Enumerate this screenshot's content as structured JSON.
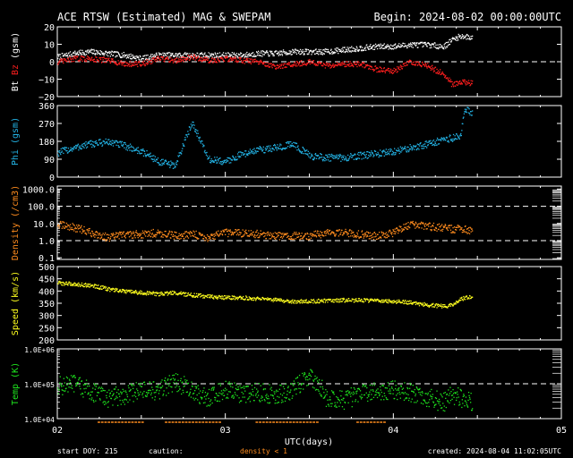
{
  "header": {
    "title": "ACE RTSW (Estimated) MAG & SWEPAM",
    "begin": "Begin: 2024-08-02 00:00:00UTC"
  },
  "footer": {
    "start_doy": "start DOY: 215",
    "caution": "caution:",
    "density_note": "density < 1",
    "created": "created: 2024-08-04 11:02:05UTC"
  },
  "x_axis": {
    "label": "UTC(days)",
    "ticks": [
      "02",
      "03",
      "04",
      "05"
    ],
    "range_days": [
      2,
      5
    ],
    "data_end_day": 4.47
  },
  "colors": {
    "bt": "#ffffff",
    "bz": "#ff1e1e",
    "phi": "#23b4e6",
    "density": "#ff8c1e",
    "speed": "#ffff1e",
    "temp": "#1ee61e",
    "frame": "#ffffff",
    "bg": "#000000"
  },
  "chart_data": [
    {
      "type": "scatter",
      "id": "mag",
      "ylabel_parts": [
        "Bt",
        "Bz",
        "(gsm)"
      ],
      "ylim": [
        -20,
        20
      ],
      "yticks": [
        "20",
        "10",
        "0",
        "−10",
        "−20"
      ],
      "yticks_values": [
        20,
        10,
        0,
        -10,
        -20
      ],
      "dashed_at": [
        0
      ],
      "series": [
        {
          "name": "Bt",
          "x": [
            2.0,
            2.1,
            2.2,
            2.3,
            2.4,
            2.5,
            2.6,
            2.7,
            2.8,
            2.9,
            3.0,
            3.1,
            3.2,
            3.3,
            3.4,
            3.5,
            3.6,
            3.7,
            3.8,
            3.9,
            4.0,
            4.1,
            4.2,
            4.3,
            4.35,
            4.4,
            4.47
          ],
          "y": [
            3,
            5,
            6,
            5,
            4,
            2,
            4,
            4,
            4,
            4,
            4,
            4,
            5,
            5,
            6,
            6,
            6,
            7,
            8,
            9,
            9,
            10,
            10,
            9,
            13,
            15,
            14
          ]
        },
        {
          "name": "Bz",
          "x": [
            2.0,
            2.1,
            2.2,
            2.3,
            2.4,
            2.5,
            2.6,
            2.7,
            2.8,
            2.9,
            3.0,
            3.1,
            3.2,
            3.3,
            3.4,
            3.5,
            3.6,
            3.7,
            3.8,
            3.9,
            4.0,
            4.1,
            4.2,
            4.3,
            4.35,
            4.4,
            4.47
          ],
          "y": [
            0,
            2,
            2,
            1,
            -1,
            -1,
            2,
            1,
            3,
            1,
            2,
            1,
            0,
            -3,
            -1,
            0,
            -2,
            -1,
            -1,
            -4,
            -5,
            0,
            -2,
            -7,
            -13,
            -11,
            -12
          ]
        }
      ]
    },
    {
      "type": "scatter",
      "id": "phi",
      "ylabel_parts": [
        "Phi (gsm)"
      ],
      "ylim": [
        0,
        360
      ],
      "yticks": [
        "360",
        "270",
        "180",
        "90",
        "0"
      ],
      "yticks_values": [
        360,
        270,
        180,
        90,
        0
      ],
      "dashed_at": [],
      "series": [
        {
          "name": "Phi",
          "x": [
            2.0,
            2.1,
            2.2,
            2.3,
            2.4,
            2.5,
            2.55,
            2.6,
            2.7,
            2.8,
            2.9,
            3.0,
            3.1,
            3.2,
            3.3,
            3.4,
            3.5,
            3.6,
            3.7,
            3.8,
            3.9,
            4.0,
            4.1,
            4.2,
            4.3,
            4.35,
            4.4,
            4.42,
            4.47
          ],
          "y": [
            125,
            150,
            170,
            180,
            160,
            130,
            110,
            80,
            60,
            280,
            90,
            80,
            120,
            140,
            150,
            170,
            110,
            100,
            100,
            110,
            120,
            130,
            150,
            170,
            190,
            200,
            210,
            340,
            330
          ]
        }
      ]
    },
    {
      "type": "scatter",
      "id": "density",
      "ylabel_parts": [
        "Density (/cm3)"
      ],
      "yscale": "log",
      "ylim": [
        0.08,
        1500
      ],
      "yticks": [
        "1000.0",
        "100.0",
        "10.0",
        "1.0",
        "0.1"
      ],
      "yticks_values": [
        1000,
        100,
        10,
        1,
        0.1
      ],
      "dashed_at": [
        100,
        1
      ],
      "series": [
        {
          "name": "Density",
          "x": [
            2.0,
            2.1,
            2.2,
            2.3,
            2.4,
            2.5,
            2.6,
            2.7,
            2.8,
            2.9,
            3.0,
            3.1,
            3.2,
            3.3,
            3.4,
            3.5,
            3.6,
            3.7,
            3.8,
            3.9,
            4.0,
            4.1,
            4.2,
            4.3,
            4.35,
            4.4,
            4.47
          ],
          "y": [
            9,
            6,
            3,
            1.5,
            2.5,
            2.5,
            3,
            2,
            2.5,
            1.5,
            3,
            3,
            2.5,
            2,
            2,
            2,
            3,
            3,
            2.5,
            2,
            3,
            9,
            7,
            6,
            5,
            5,
            4
          ]
        }
      ]
    },
    {
      "type": "scatter",
      "id": "speed",
      "ylabel_parts": [
        "Speed (km/s)"
      ],
      "ylim": [
        200,
        500
      ],
      "yticks": [
        "500",
        "450",
        "400",
        "350",
        "300",
        "250",
        "200"
      ],
      "yticks_values": [
        500,
        450,
        400,
        350,
        300,
        250,
        200
      ],
      "dashed_at": [],
      "series": [
        {
          "name": "Speed",
          "x": [
            2.0,
            2.1,
            2.2,
            2.3,
            2.4,
            2.5,
            2.6,
            2.7,
            2.8,
            2.9,
            3.0,
            3.1,
            3.2,
            3.3,
            3.4,
            3.5,
            3.6,
            3.7,
            3.8,
            3.9,
            4.0,
            4.1,
            4.2,
            4.3,
            4.35,
            4.4,
            4.47
          ],
          "y": [
            435,
            430,
            425,
            410,
            400,
            395,
            390,
            395,
            385,
            380,
            375,
            375,
            370,
            365,
            360,
            360,
            362,
            365,
            365,
            362,
            360,
            355,
            345,
            340,
            345,
            370,
            380
          ]
        }
      ]
    },
    {
      "type": "scatter",
      "id": "temp",
      "ylabel_parts": [
        "Temp (K)"
      ],
      "yscale": "log",
      "ylim": [
        10000,
        1000000
      ],
      "yticks": [
        "1.0E+06",
        "1.0E+05",
        "1.0E+04"
      ],
      "yticks_values": [
        1000000,
        100000,
        10000
      ],
      "dashed_at": [
        100000
      ],
      "series": [
        {
          "name": "Temp",
          "x": [
            2.0,
            2.1,
            2.2,
            2.3,
            2.4,
            2.5,
            2.6,
            2.7,
            2.8,
            2.9,
            3.0,
            3.1,
            3.2,
            3.3,
            3.4,
            3.5,
            3.6,
            3.7,
            3.8,
            3.9,
            4.0,
            4.1,
            4.2,
            4.3,
            4.35,
            4.4,
            4.47
          ],
          "y": [
            90000,
            100000,
            60000,
            40000,
            50000,
            70000,
            60000,
            120000,
            60000,
            40000,
            70000,
            50000,
            60000,
            50000,
            70000,
            150000,
            40000,
            35000,
            50000,
            60000,
            70000,
            60000,
            40000,
            30000,
            50000,
            40000,
            30000
          ]
        }
      ]
    }
  ]
}
